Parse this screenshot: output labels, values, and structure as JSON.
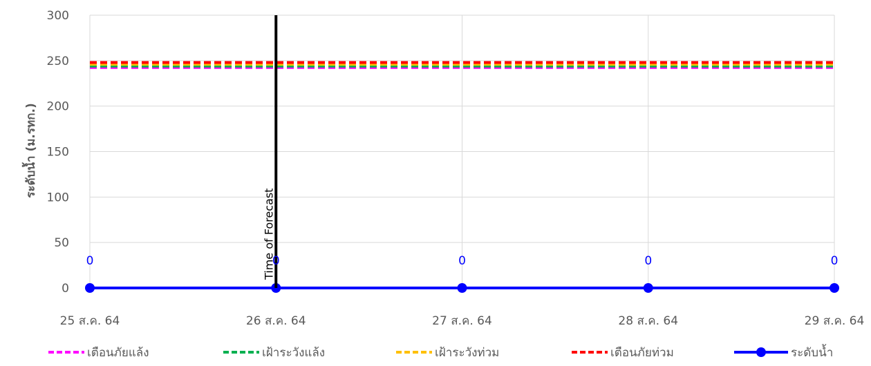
{
  "chart_data": {
    "type": "line",
    "ylabel": "ระดับน้ำ (ม.รทก.)",
    "xlabel": "",
    "categories": [
      "25 ส.ค. 64",
      "26 ส.ค. 64",
      "27 ส.ค. 64",
      "28 ส.ค. 64",
      "29 ส.ค. 64"
    ],
    "ylim": [
      0,
      300
    ],
    "yticks": [
      0,
      50,
      100,
      150,
      200,
      250,
      300
    ],
    "grid": true,
    "legend_position": "bottom",
    "series": [
      {
        "name": "เตือนภัยแล้ง",
        "style": "dashed",
        "color": "#ff00ff",
        "values": [
          242.5,
          242.5,
          242.5,
          242.5,
          242.5
        ]
      },
      {
        "name": "เฝ้าระวังแล้ง",
        "style": "dashed",
        "color": "#00b050",
        "values": [
          244,
          244,
          244,
          244,
          244
        ]
      },
      {
        "name": "เฝ้าระวังท่วม",
        "style": "dashed",
        "color": "#ffc000",
        "values": [
          246,
          246,
          246,
          246,
          246
        ]
      },
      {
        "name": "เตือนภัยท่วม",
        "style": "dashed",
        "color": "#ff0000",
        "values": [
          248,
          248,
          248,
          248,
          248
        ]
      },
      {
        "name": "ระดับน้ำ",
        "style": "solid-markers",
        "color": "#0000ff",
        "values": [
          0,
          0,
          0,
          0,
          0
        ],
        "data_labels": [
          "0",
          "0",
          "0",
          "0",
          "0"
        ]
      }
    ],
    "annotations": [
      {
        "text": "Time of Forecast",
        "x": "26 ส.ค. 64"
      }
    ]
  }
}
